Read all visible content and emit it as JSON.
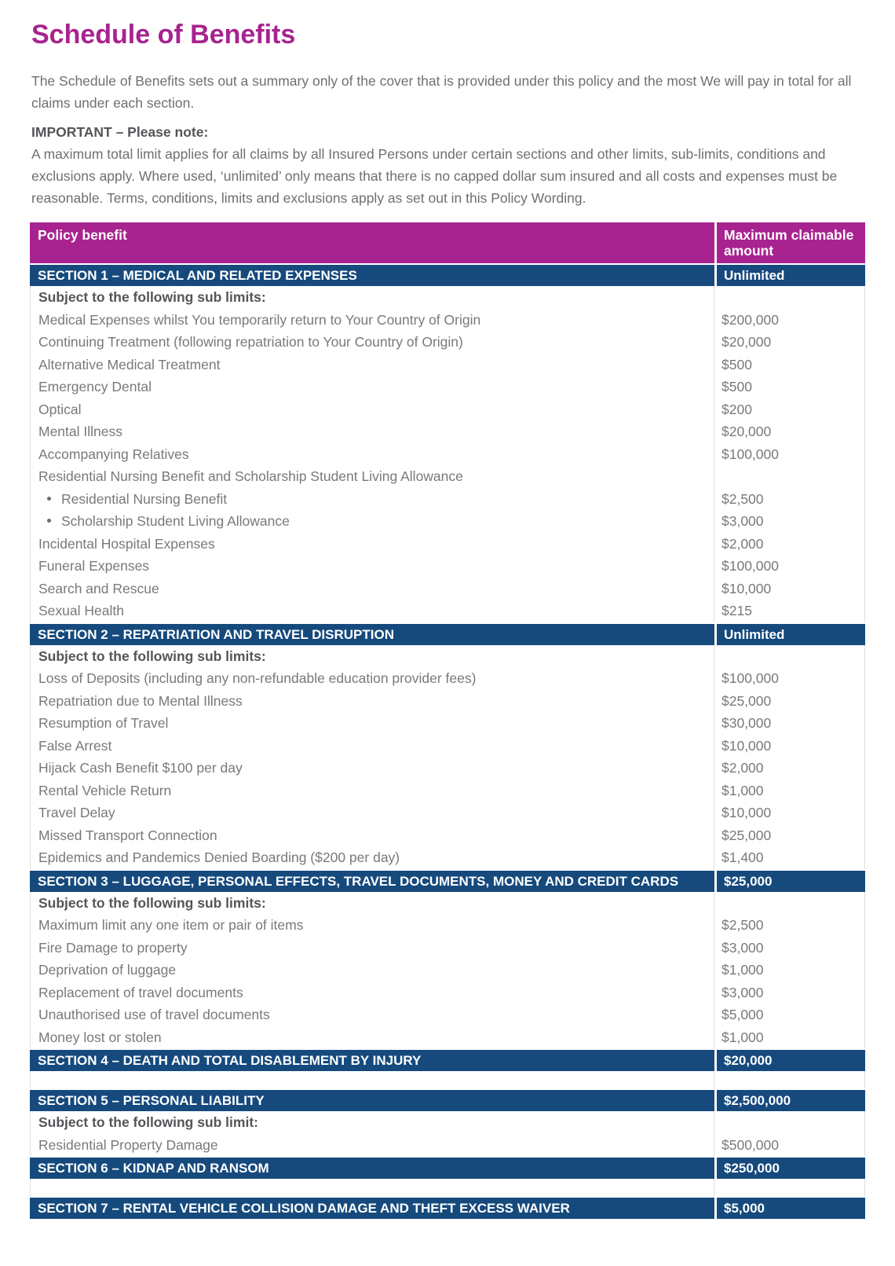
{
  "page": {
    "title": "Schedule of Benefits",
    "intro": "The Schedule of Benefits sets out a summary only of the cover that is provided under this policy and the most We will pay in total for all claims under each section.",
    "important_heading": "IMPORTANT – Please note:",
    "important_body": "A maximum total limit applies for all claims by all Insured Persons under certain sections and other limits, sub-limits, conditions and exclusions apply. Where used, ‘unlimited’ only means that there is no capped dollar sum insured and all costs and expenses must be reasonable. Terms, conditions, limits and exclusions apply as set out in this Policy Wording."
  },
  "colors": {
    "accent_magenta": "#a8238f",
    "accent_navy": "#164a7d",
    "body_text_gray": "#78797c",
    "bold_text_gray": "#545559",
    "border_gray": "#dcddde"
  },
  "table": {
    "header": {
      "col1": "Policy benefit",
      "col2": "Maximum claimable amount"
    },
    "sections": [
      {
        "title": "SECTION 1 – MEDICAL AND RELATED EXPENSES",
        "amount": "Unlimited",
        "subheading": "Subject to the following sub limits:",
        "gap_after": false,
        "rows": [
          {
            "label": "Medical Expenses whilst You temporarily return to Your Country of Origin",
            "amount": "$200,000",
            "bullet": false
          },
          {
            "label": "Continuing Treatment (following repatriation to Your Country of Origin)",
            "amount": "$20,000",
            "bullet": false
          },
          {
            "label": "Alternative Medical Treatment",
            "amount": "$500",
            "bullet": false
          },
          {
            "label": "Emergency Dental",
            "amount": "$500",
            "bullet": false
          },
          {
            "label": "Optical",
            "amount": "$200",
            "bullet": false
          },
          {
            "label": "Mental Illness",
            "amount": "$20,000",
            "bullet": false
          },
          {
            "label": "Accompanying Relatives",
            "amount": "$100,000",
            "bullet": false
          },
          {
            "label": "Residential Nursing Benefit and Scholarship Student Living Allowance",
            "amount": "",
            "bullet": false
          },
          {
            "label": "Residential Nursing Benefit",
            "amount": "$2,500",
            "bullet": true
          },
          {
            "label": "Scholarship Student Living Allowance",
            "amount": "$3,000",
            "bullet": true
          },
          {
            "label": "Incidental Hospital Expenses",
            "amount": "$2,000",
            "bullet": false
          },
          {
            "label": "Funeral Expenses",
            "amount": "$100,000",
            "bullet": false
          },
          {
            "label": "Search and Rescue",
            "amount": "$10,000",
            "bullet": false
          },
          {
            "label": "Sexual Health",
            "amount": "$215",
            "bullet": false
          }
        ]
      },
      {
        "title": "SECTION 2 – REPATRIATION AND TRAVEL DISRUPTION",
        "amount": "Unlimited",
        "subheading": "Subject to the following sub limits:",
        "gap_after": false,
        "rows": [
          {
            "label": "Loss of Deposits (including any non-refundable education provider fees)",
            "amount": "$100,000",
            "bullet": false
          },
          {
            "label": "Repatriation due to Mental Illness",
            "amount": "$25,000",
            "bullet": false
          },
          {
            "label": "Resumption of Travel",
            "amount": "$30,000",
            "bullet": false
          },
          {
            "label": "False Arrest",
            "amount": "$10,000",
            "bullet": false
          },
          {
            "label": "Hijack Cash Benefit $100 per day",
            "amount": "$2,000",
            "bullet": false
          },
          {
            "label": "Rental Vehicle Return",
            "amount": "$1,000",
            "bullet": false
          },
          {
            "label": "Travel Delay",
            "amount": "$10,000",
            "bullet": false
          },
          {
            "label": "Missed Transport Connection",
            "amount": "$25,000",
            "bullet": false
          },
          {
            "label": "Epidemics and Pandemics Denied Boarding ($200 per day)",
            "amount": "$1,400",
            "bullet": false
          }
        ]
      },
      {
        "title": "SECTION 3 – LUGGAGE, PERSONAL EFFECTS, TRAVEL DOCUMENTS, MONEY AND CREDIT CARDS",
        "amount": "$25,000",
        "subheading": "Subject to the following sub limits:",
        "gap_after": false,
        "rows": [
          {
            "label": "Maximum limit any one item or pair of items",
            "amount": "$2,500",
            "bullet": false
          },
          {
            "label": "Fire Damage to property",
            "amount": "$3,000",
            "bullet": false
          },
          {
            "label": "Deprivation of luggage",
            "amount": "$1,000",
            "bullet": false
          },
          {
            "label": "Replacement of travel documents",
            "amount": "$3,000",
            "bullet": false
          },
          {
            "label": "Unauthorised use of travel documents",
            "amount": "$5,000",
            "bullet": false
          },
          {
            "label": "Money lost or stolen",
            "amount": "$1,000",
            "bullet": false
          }
        ]
      },
      {
        "title": "SECTION 4 – DEATH AND TOTAL DISABLEMENT BY INJURY",
        "amount": "$20,000",
        "subheading": "",
        "gap_after": true,
        "rows": []
      },
      {
        "title": "SECTION 5 – PERSONAL LIABILITY",
        "amount": "$2,500,000",
        "subheading": "Subject to the following sub limit:",
        "gap_after": false,
        "rows": [
          {
            "label": "Residential Property Damage",
            "amount": "$500,000",
            "bullet": false
          }
        ]
      },
      {
        "title": "SECTION 6 – KIDNAP AND RANSOM",
        "amount": "$250,000",
        "subheading": "",
        "gap_after": true,
        "rows": []
      },
      {
        "title": "SECTION 7 – RENTAL VEHICLE COLLISION DAMAGE AND THEFT EXCESS WAIVER",
        "amount": "$5,000",
        "subheading": "",
        "gap_after": false,
        "rows": []
      }
    ]
  }
}
